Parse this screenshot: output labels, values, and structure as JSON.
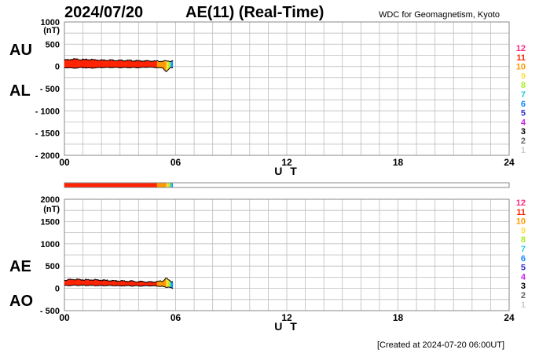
{
  "header": {
    "date": "2024/07/20",
    "title": "AE(11) (Real-Time)",
    "credit": "WDC for Geomagnetism, Kyoto"
  },
  "footer": "[Created at 2024-07-20 06:00UT]",
  "legend": {
    "entries": [
      {
        "label": "12",
        "color": "#ff2a80"
      },
      {
        "label": "11",
        "color": "#ff2200"
      },
      {
        "label": "10",
        "color": "#ff9900"
      },
      {
        "label": "9",
        "color": "#ffdd44"
      },
      {
        "label": "8",
        "color": "#aaee22"
      },
      {
        "label": "7",
        "color": "#22ccdd"
      },
      {
        "label": "6",
        "color": "#1188ff"
      },
      {
        "label": "5",
        "color": "#3333cc"
      },
      {
        "label": "4",
        "color": "#cc22ee"
      },
      {
        "label": "3",
        "color": "#000000"
      },
      {
        "label": "2",
        "color": "#666666"
      },
      {
        "label": "1",
        "color": "#cccccc"
      }
    ]
  },
  "station_bar": {
    "segments": [
      {
        "from": 0.0,
        "to": 5.0,
        "color": "#ff2200"
      },
      {
        "from": 5.0,
        "to": 5.5,
        "color": "#ff9900"
      },
      {
        "from": 5.5,
        "to": 5.62,
        "color": "#ffdd44"
      },
      {
        "from": 5.62,
        "to": 5.72,
        "color": "#aaee22"
      },
      {
        "from": 5.72,
        "to": 5.8,
        "color": "#22ccdd"
      },
      {
        "from": 5.8,
        "to": 5.85,
        "color": "#1188ff"
      }
    ]
  },
  "chart_data": [
    {
      "type": "area",
      "id": "au-al",
      "xlabel": "U T",
      "ylabel_unit": "(nT)",
      "series_labels": [
        "AU",
        "AL"
      ],
      "xlim": [
        0,
        24
      ],
      "ylim": [
        -2000,
        1000
      ],
      "xticks": [
        0,
        6,
        12,
        18,
        24
      ],
      "xtick_labels": [
        "00",
        "06",
        "12",
        "18",
        "24"
      ],
      "yticks": [
        1000,
        500,
        0,
        -500,
        -1000,
        -1500,
        -2000
      ],
      "ytick_labels": [
        "1000",
        "500",
        "0",
        "- 500",
        "- 1000",
        "- 1500",
        "- 2000"
      ],
      "grid": true,
      "series": [
        {
          "name": "AU",
          "x": [
            0,
            0.5,
            1,
            1.5,
            2,
            2.5,
            3,
            3.5,
            4,
            4.5,
            5,
            5.3,
            5.5,
            5.7,
            5.85
          ],
          "values": [
            150,
            170,
            160,
            160,
            150,
            150,
            140,
            140,
            130,
            130,
            125,
            125,
            130,
            125,
            130
          ]
        },
        {
          "name": "AL",
          "x": [
            0,
            0.5,
            1,
            1.5,
            2,
            2.5,
            3,
            3.5,
            4,
            4.5,
            5,
            5.3,
            5.5,
            5.7,
            5.85
          ],
          "values": [
            -30,
            -40,
            -30,
            -40,
            -30,
            -30,
            -30,
            -30,
            -30,
            -20,
            -30,
            -40,
            -120,
            -40,
            -30
          ]
        }
      ]
    },
    {
      "type": "area",
      "id": "ae-ao",
      "xlabel": "U T",
      "ylabel_unit": "(nT)",
      "series_labels": [
        "AE",
        "AO"
      ],
      "xlim": [
        0,
        24
      ],
      "ylim": [
        -500,
        2000
      ],
      "xticks": [
        0,
        6,
        12,
        18,
        24
      ],
      "xtick_labels": [
        "00",
        "06",
        "12",
        "18",
        "24"
      ],
      "yticks": [
        2000,
        1500,
        1000,
        500,
        0,
        -500
      ],
      "ytick_labels": [
        "2000",
        "1500",
        "1000",
        "500",
        "0",
        "- 500"
      ],
      "grid": true,
      "series": [
        {
          "name": "AE",
          "x": [
            0,
            0.5,
            1,
            1.5,
            2,
            2.5,
            3,
            3.5,
            4,
            4.5,
            5,
            5.3,
            5.5,
            5.65,
            5.85
          ],
          "values": [
            190,
            210,
            200,
            200,
            190,
            180,
            170,
            170,
            160,
            150,
            155,
            170,
            240,
            180,
            160
          ]
        },
        {
          "name": "AO",
          "x": [
            0,
            0.5,
            1,
            1.5,
            2,
            2.5,
            3,
            3.5,
            4,
            4.5,
            5,
            5.3,
            5.5,
            5.65,
            5.85
          ],
          "values": [
            60,
            65,
            65,
            60,
            60,
            60,
            55,
            55,
            50,
            55,
            50,
            40,
            20,
            30,
            -10
          ]
        }
      ]
    }
  ]
}
